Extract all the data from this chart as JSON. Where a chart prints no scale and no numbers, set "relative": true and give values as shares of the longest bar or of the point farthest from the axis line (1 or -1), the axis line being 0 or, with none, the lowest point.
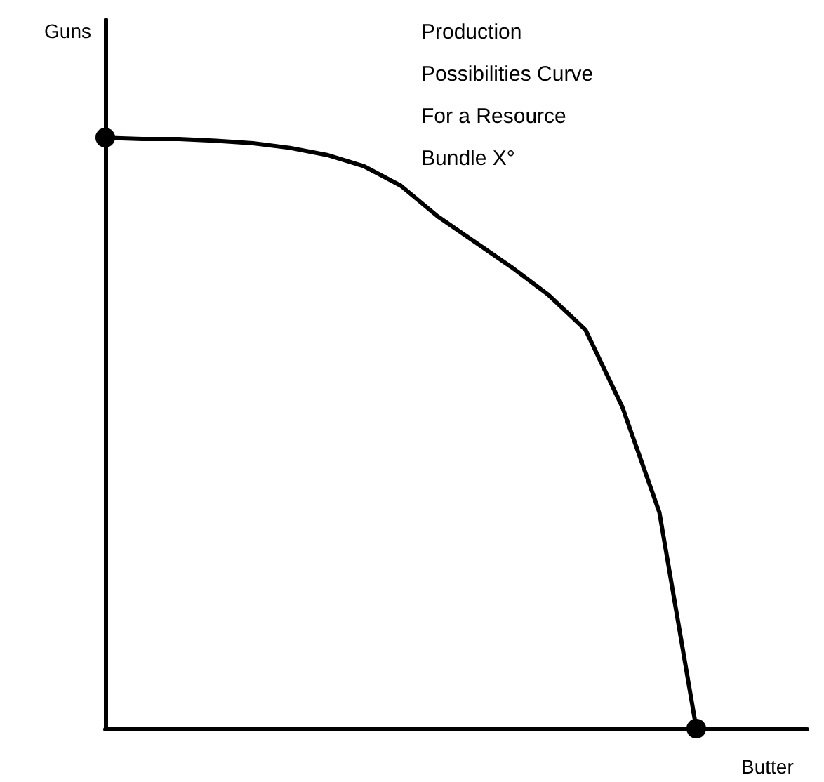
{
  "chart_data": {
    "type": "line",
    "title": "Production\nPossibilities Curve\nFor a Resource\nBundle X°",
    "xlabel": "Butter",
    "ylabel": "Guns",
    "relative": true,
    "grid": false,
    "categories": [
      null,
      null,
      null,
      null,
      null,
      null,
      null,
      null,
      null,
      null,
      null,
      null,
      null,
      null,
      null,
      null,
      null,
      null,
      null,
      null
    ],
    "series": [
      {
        "color": "#000000",
        "values": [
          1,
          0.998,
          0.998,
          0.995,
          0.991,
          0.983,
          0.971,
          0.952,
          0.919,
          0.867,
          0.824,
          0.781,
          0.734,
          0.675,
          0.544,
          0.366,
          0,
          null,
          null,
          null
        ]
      }
    ]
  }
}
